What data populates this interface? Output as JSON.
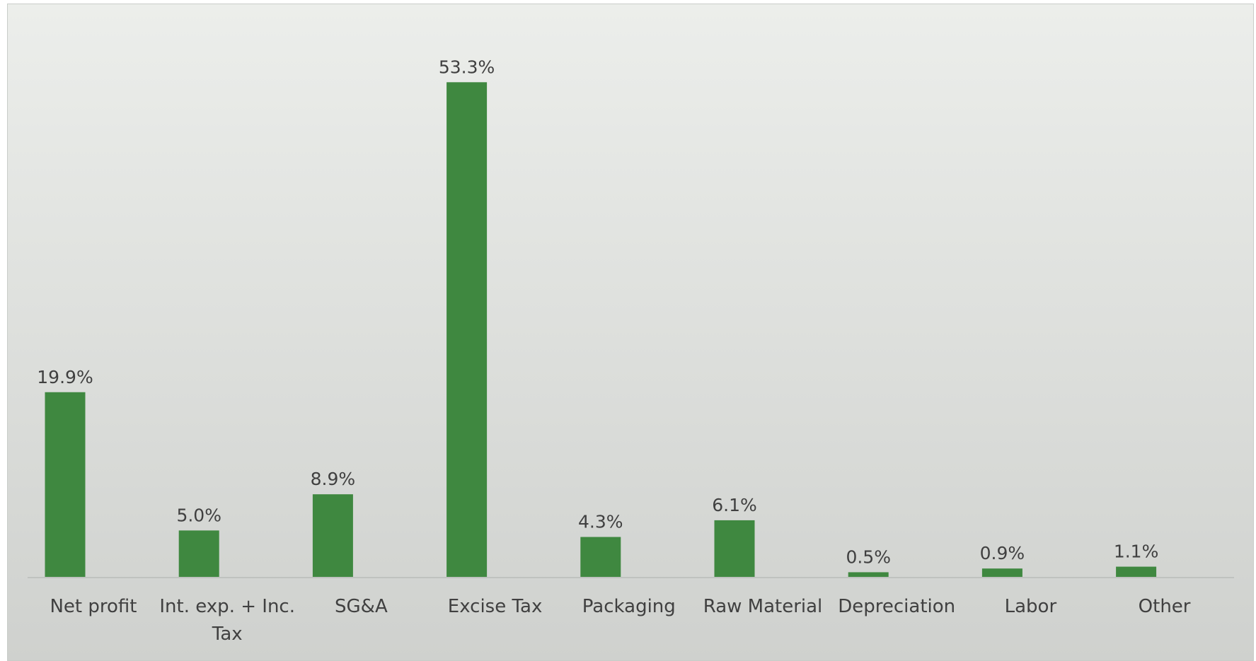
{
  "chart_data": {
    "type": "bar",
    "categories": [
      "Net profit",
      "Int. exp. + Inc. Tax",
      "SG&A",
      "Excise Tax",
      "Packaging",
      "Raw Material",
      "Depreciation",
      "Labor",
      "Other"
    ],
    "category_lines": [
      [
        "Net profit"
      ],
      [
        "Int. exp. + Inc.",
        "Tax"
      ],
      [
        "SG&A"
      ],
      [
        "Excise Tax"
      ],
      [
        "Packaging"
      ],
      [
        "Raw Material"
      ],
      [
        "Depreciation"
      ],
      [
        "Labor"
      ],
      [
        "Other"
      ]
    ],
    "values": [
      19.9,
      5.0,
      8.9,
      53.3,
      4.3,
      6.1,
      0.5,
      0.9,
      1.1
    ],
    "data_labels": [
      "19.9%",
      "5.0%",
      "8.9%",
      "53.3%",
      "4.3%",
      "6.1%",
      "0.5%",
      "0.9%",
      "1.1%"
    ],
    "title": "",
    "xlabel": "",
    "ylabel": "",
    "ylim": [
      0,
      55
    ],
    "grid": false,
    "legend": "none",
    "bar_color": "#3f8840",
    "axis_color": "#bfc2bf"
  }
}
